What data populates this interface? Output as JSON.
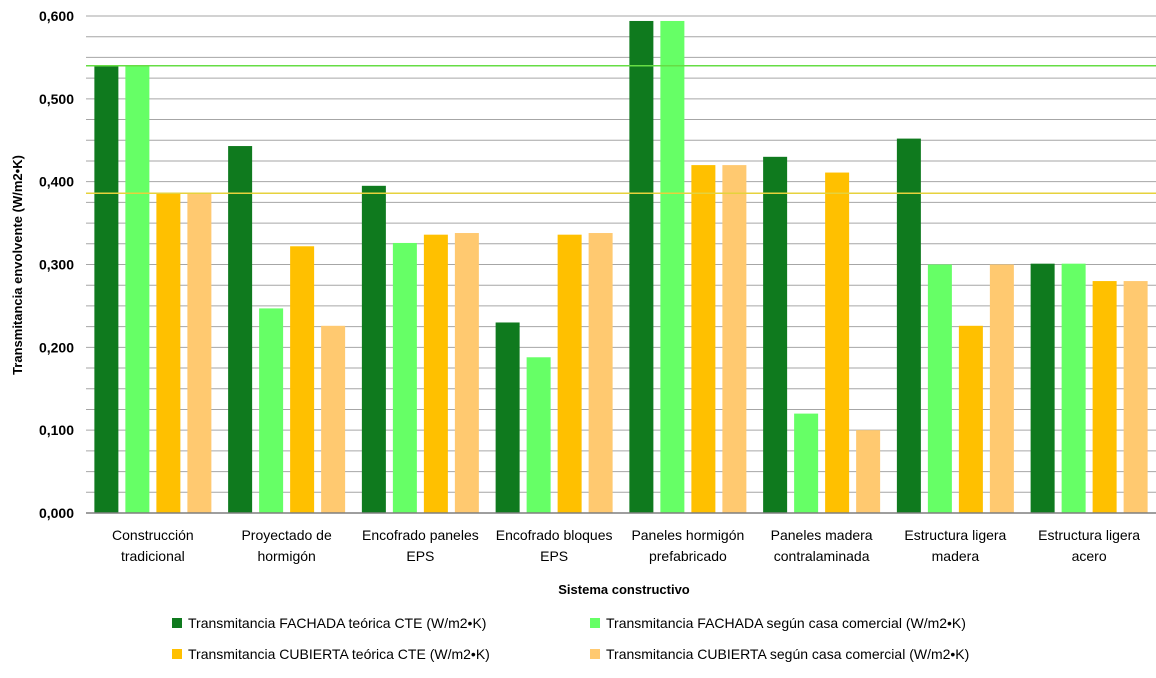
{
  "chart_data": {
    "type": "bar",
    "xlabel": "Sistema constructivo",
    "ylabel": "Transmitancia envolvente (W/m2•K)",
    "ylim": [
      0,
      0.6
    ],
    "yticks": [
      "0,000",
      "0,100",
      "0,200",
      "0,300",
      "0,400",
      "0,500",
      "0,600"
    ],
    "grid": true,
    "legend_position": "bottom",
    "categories": [
      [
        "Construcción",
        "tradicional"
      ],
      [
        "Proyectado de",
        "hormigón"
      ],
      [
        "Encofrado paneles",
        "EPS"
      ],
      [
        "Encofrado bloques",
        "EPS"
      ],
      [
        "Paneles hormigón",
        "prefabricado"
      ],
      [
        "Paneles madera",
        "contralaminada"
      ],
      [
        "Estructura ligera",
        "madera"
      ],
      [
        "Estructura ligera",
        "acero"
      ]
    ],
    "series": [
      {
        "name": "Transmitancia FACHADA teórica CTE (W/m2•K)",
        "color": "#0f7a1e",
        "values": [
          0.54,
          0.443,
          0.395,
          0.23,
          0.594,
          0.43,
          0.452,
          0.301
        ]
      },
      {
        "name": "Transmitancia FACHADA según casa comercial (W/m2•K)",
        "color": "#66ff66",
        "values": [
          0.54,
          0.247,
          0.326,
          0.188,
          0.594,
          0.12,
          0.3,
          0.301
        ]
      },
      {
        "name": "Transmitancia CUBIERTA teórica CTE (W/m2•K)",
        "color": "#ffc000",
        "values": [
          0.386,
          0.322,
          0.336,
          0.336,
          0.42,
          0.411,
          0.226,
          0.28
        ]
      },
      {
        "name": "Transmitancia CUBIERTA según casa comercial (W/m2•K)",
        "color": "#ffc970",
        "values": [
          0.386,
          0.226,
          0.338,
          0.338,
          0.42,
          0.1,
          0.3,
          0.28
        ]
      }
    ],
    "reference_lines": [
      {
        "value": 0.54,
        "color": "#66dd44"
      },
      {
        "value": 0.386,
        "color": "#e6d23c"
      }
    ]
  }
}
